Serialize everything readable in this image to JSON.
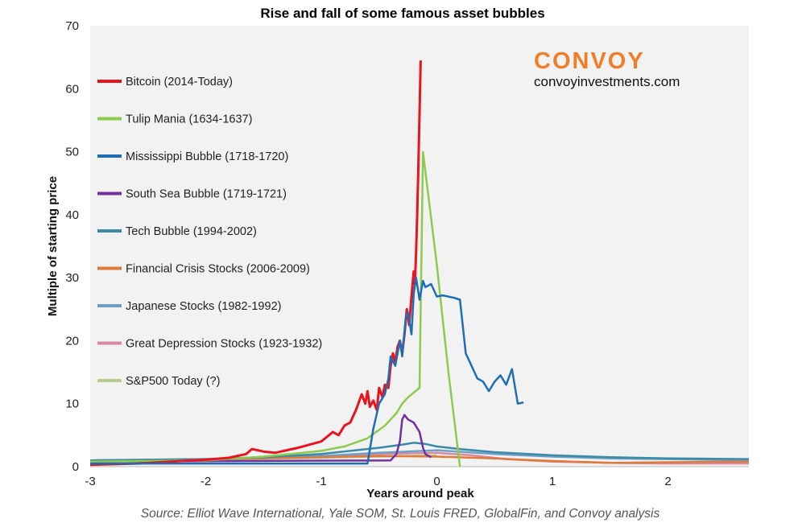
{
  "chart_data": {
    "type": "line",
    "title": "Rise and fall of some famous asset bubbles",
    "xlabel": "Years around peak",
    "ylabel": "Multiple of starting price",
    "xlim": [
      -3,
      2.7
    ],
    "ylim": [
      0,
      70
    ],
    "x_ticks": [
      -3,
      -2,
      -1,
      0,
      1,
      2
    ],
    "y_ticks": [
      0,
      10,
      20,
      30,
      40,
      50,
      60,
      70
    ],
    "grid": false,
    "legend_position": "left",
    "series": [
      {
        "name": "Bitcoin (2014-Today)",
        "color": "#e8141f",
        "x": [
          -3,
          -2.6,
          -2.3,
          -2.0,
          -1.8,
          -1.65,
          -1.6,
          -1.5,
          -1.4,
          -1.3,
          -1.2,
          -1.1,
          -1.0,
          -0.9,
          -0.85,
          -0.8,
          -0.75,
          -0.7,
          -0.65,
          -0.62,
          -0.6,
          -0.58,
          -0.55,
          -0.52,
          -0.5,
          -0.47,
          -0.45,
          -0.42,
          -0.4,
          -0.38,
          -0.36,
          -0.34,
          -0.32,
          -0.3,
          -0.28,
          -0.26,
          -0.24,
          -0.22,
          -0.2,
          -0.19,
          -0.18,
          -0.17,
          -0.16,
          -0.15,
          -0.14
        ],
        "y": [
          0.3,
          0.5,
          0.8,
          1.1,
          1.4,
          2.0,
          2.8,
          2.4,
          2.2,
          2.6,
          3.0,
          3.5,
          4.0,
          5.5,
          5.0,
          6.5,
          7.0,
          9.0,
          11.5,
          10.0,
          12.0,
          9.5,
          10.5,
          9.0,
          12.5,
          11.0,
          13.0,
          12.5,
          16.0,
          18.0,
          16.5,
          19.0,
          20.0,
          18.0,
          21.0,
          25.0,
          22.5,
          27.0,
          31.0,
          29.0,
          34.0,
          40.0,
          48.0,
          56.0,
          64.5
        ]
      },
      {
        "name": "Tulip Mania (1634-1637)",
        "color": "#8fc94e",
        "x": [
          -3,
          -2.0,
          -1.5,
          -1.0,
          -0.8,
          -0.6,
          -0.45,
          -0.35,
          -0.3,
          -0.25,
          -0.15,
          -0.12,
          0.0,
          0.1,
          0.2
        ],
        "y": [
          0.8,
          1.0,
          1.6,
          2.5,
          3.2,
          4.5,
          6.5,
          8.5,
          10.0,
          11.0,
          12.5,
          50.0,
          32.0,
          15.0,
          0.0
        ]
      },
      {
        "name": "Mississippi Bubble (1718-1720)",
        "color": "#1f6eb5",
        "x": [
          -3,
          -0.6,
          -0.55,
          -0.5,
          -0.45,
          -0.42,
          -0.4,
          -0.36,
          -0.32,
          -0.3,
          -0.27,
          -0.25,
          -0.22,
          -0.2,
          -0.18,
          -0.15,
          -0.12,
          -0.1,
          -0.05,
          0.0,
          0.05,
          0.1,
          0.15,
          0.2,
          0.25,
          0.3,
          0.35,
          0.4,
          0.45,
          0.5,
          0.55,
          0.6,
          0.65,
          0.7,
          0.75
        ],
        "y": [
          0.5,
          0.5,
          6.0,
          10.0,
          11.5,
          14.0,
          17.5,
          16.0,
          20.0,
          17.5,
          23.5,
          24.5,
          21.0,
          27.5,
          30.0,
          26.5,
          29.5,
          28.5,
          29.0,
          27.0,
          27.2,
          27.0,
          26.8,
          26.5,
          18.0,
          16.0,
          14.0,
          13.5,
          12.0,
          13.5,
          14.5,
          13.0,
          15.5,
          10.0,
          10.2
        ]
      },
      {
        "name": "South Sea Bubble (1719-1721)",
        "color": "#7030a0",
        "x": [
          -3,
          -0.4,
          -0.35,
          -0.32,
          -0.3,
          -0.28,
          -0.25,
          -0.2,
          -0.15,
          -0.12,
          -0.1,
          -0.05
        ],
        "y": [
          0.8,
          1.0,
          2.0,
          4.0,
          7.5,
          8.2,
          7.5,
          7.0,
          5.5,
          3.0,
          2.0,
          1.5
        ]
      },
      {
        "name": "Tech Bubble (1994-2002)",
        "color": "#3a8aa8",
        "x": [
          -3,
          -2,
          -1.5,
          -1,
          -0.5,
          -0.3,
          -0.2,
          -0.1,
          0,
          0.2,
          0.5,
          1.0,
          1.5,
          2.0,
          2.7
        ],
        "y": [
          1.0,
          1.2,
          1.5,
          2.0,
          3.0,
          3.5,
          3.8,
          3.6,
          3.2,
          2.8,
          2.3,
          1.8,
          1.5,
          1.3,
          1.2
        ]
      },
      {
        "name": "Financial Crisis Stocks (2006-2009)",
        "color": "#e07a3a",
        "x": [
          -3,
          -2,
          -1,
          -0.5,
          0,
          0.5,
          1.0,
          1.5,
          2.0,
          2.7
        ],
        "y": [
          1.0,
          1.2,
          1.5,
          1.7,
          1.6,
          1.3,
          0.9,
          0.6,
          0.7,
          0.8
        ]
      },
      {
        "name": "Japanese Stocks (1982-1992)",
        "color": "#6f9fc7",
        "x": [
          -3,
          -2,
          -1,
          -0.5,
          0,
          0.5,
          1.0,
          1.5,
          2.0,
          2.7
        ],
        "y": [
          0.8,
          1.1,
          1.7,
          2.2,
          2.6,
          2.0,
          1.6,
          1.3,
          1.2,
          1.0
        ]
      },
      {
        "name": "Great Depression Stocks (1923-1932)",
        "color": "#d98aa0",
        "x": [
          -3,
          -2,
          -1,
          -0.5,
          0,
          0.3,
          0.6,
          1.0,
          1.5,
          2.0,
          2.7
        ],
        "y": [
          0.9,
          1.2,
          1.6,
          2.0,
          2.2,
          1.8,
          1.2,
          0.8,
          0.6,
          0.5,
          0.5
        ]
      },
      {
        "name": "S&P500 Today (?)",
        "color": "#b5cc8e",
        "x": [
          -3,
          -2,
          -1,
          -0.5,
          0
        ],
        "y": [
          0.9,
          1.1,
          1.4,
          1.6,
          1.8
        ]
      }
    ]
  },
  "branding": {
    "logo_text": "CONVOY",
    "logo_color": "#f07d28",
    "url": "convoyinvestments.com"
  },
  "source": "Source: Elliot Wave International, Yale SOM, St. Louis FRED, GlobalFin, and Convoy analysis"
}
